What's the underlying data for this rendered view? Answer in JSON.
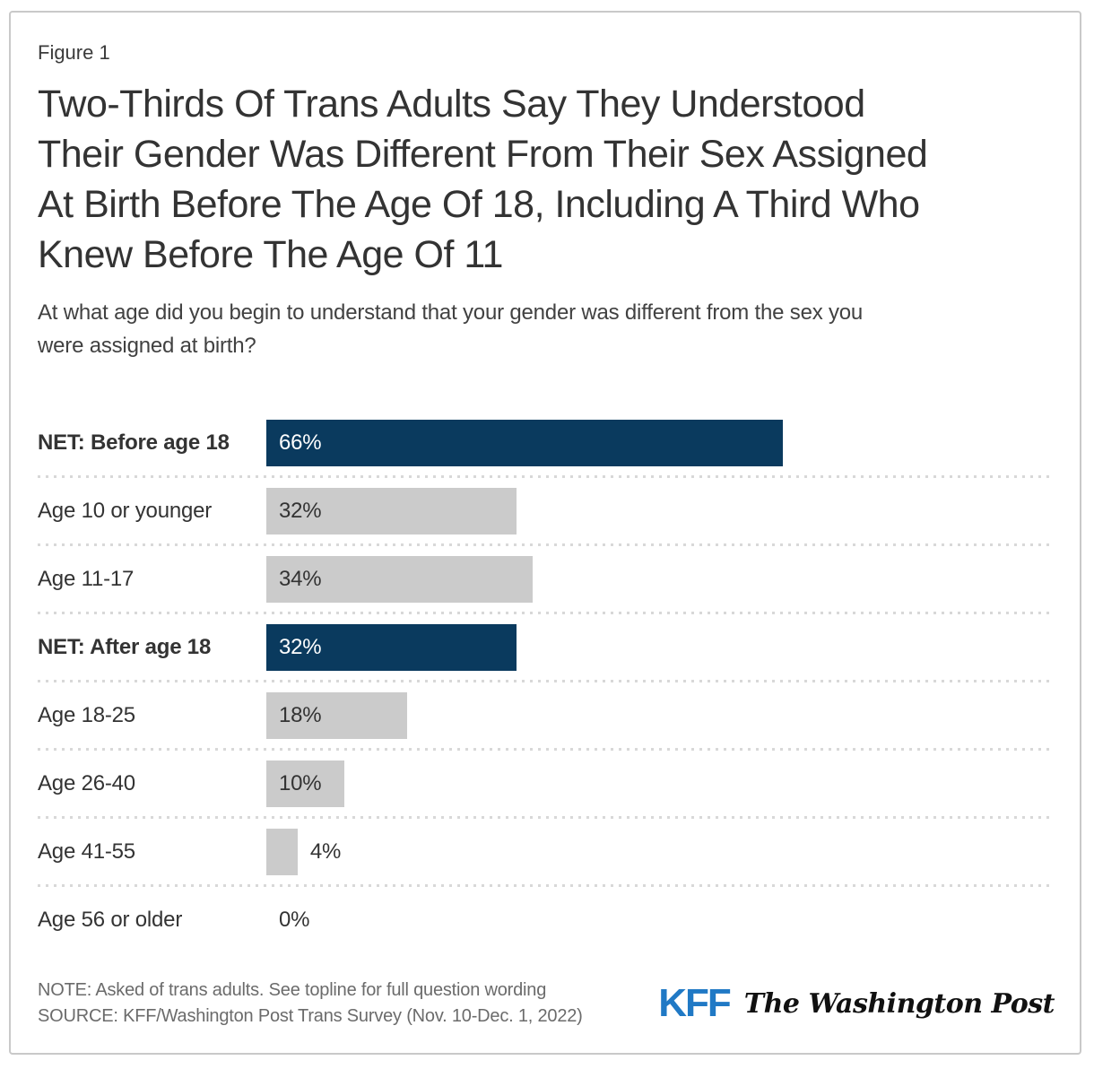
{
  "figure_label": "Figure 1",
  "title_lines": [
    "Two-Thirds Of Trans Adults Say They Understood",
    "Their Gender Was Different From Their Sex Assigned",
    "At Birth Before The Age Of 18, Including A Third Who",
    "Knew Before The Age Of 11"
  ],
  "subtitle_lines": [
    "At what age did you begin to understand that your gender was different from the sex you",
    "were assigned at birth?"
  ],
  "chart_data": {
    "type": "bar",
    "orientation": "horizontal",
    "xlim": [
      0,
      100
    ],
    "unit": "%",
    "grid": false,
    "categories": [
      "NET: Before age 18",
      "Age 10 or younger",
      "Age 11-17",
      "NET: After age 18",
      "Age 18-25",
      "Age 26-40",
      "Age 41-55",
      "Age 56 or older"
    ],
    "values": [
      66,
      32,
      34,
      32,
      18,
      10,
      4,
      0
    ],
    "rows": [
      {
        "label": "NET: Before age 18",
        "value": 66,
        "display": "66%",
        "emphasis": true,
        "theme": "navy",
        "label_position": "inside"
      },
      {
        "label": "Age 10 or younger",
        "value": 32,
        "display": "32%",
        "emphasis": false,
        "theme": "gray",
        "label_position": "inside"
      },
      {
        "label": "Age 11-17",
        "value": 34,
        "display": "34%",
        "emphasis": false,
        "theme": "gray",
        "label_position": "inside"
      },
      {
        "label": "NET: After age 18",
        "value": 32,
        "display": "32%",
        "emphasis": true,
        "theme": "navy",
        "label_position": "inside"
      },
      {
        "label": "Age 18-25",
        "value": 18,
        "display": "18%",
        "emphasis": false,
        "theme": "gray",
        "label_position": "inside"
      },
      {
        "label": "Age 26-40",
        "value": 10,
        "display": "10%",
        "emphasis": false,
        "theme": "gray",
        "label_position": "inside"
      },
      {
        "label": "Age 41-55",
        "value": 4,
        "display": "4%",
        "emphasis": false,
        "theme": "gray",
        "label_position": "outside"
      },
      {
        "label": "Age 56 or older",
        "value": 0,
        "display": "0%",
        "emphasis": false,
        "theme": "gray",
        "label_position": "outside"
      }
    ]
  },
  "colors": {
    "navy_bar": "#0a3a5e",
    "gray_bar": "#cbcbcb",
    "kff_blue": "#2079c5",
    "border": "#c9c9c9",
    "dotted_separator": "#d8d8d8"
  },
  "footer": {
    "note": "NOTE: Asked of trans adults. See topline for full question wording",
    "source": "SOURCE: KFF/Washington Post Trans Survey (Nov. 10-Dec. 1, 2022)"
  },
  "logos": {
    "kff": "KFF",
    "washington_post": "The Washington Post"
  }
}
